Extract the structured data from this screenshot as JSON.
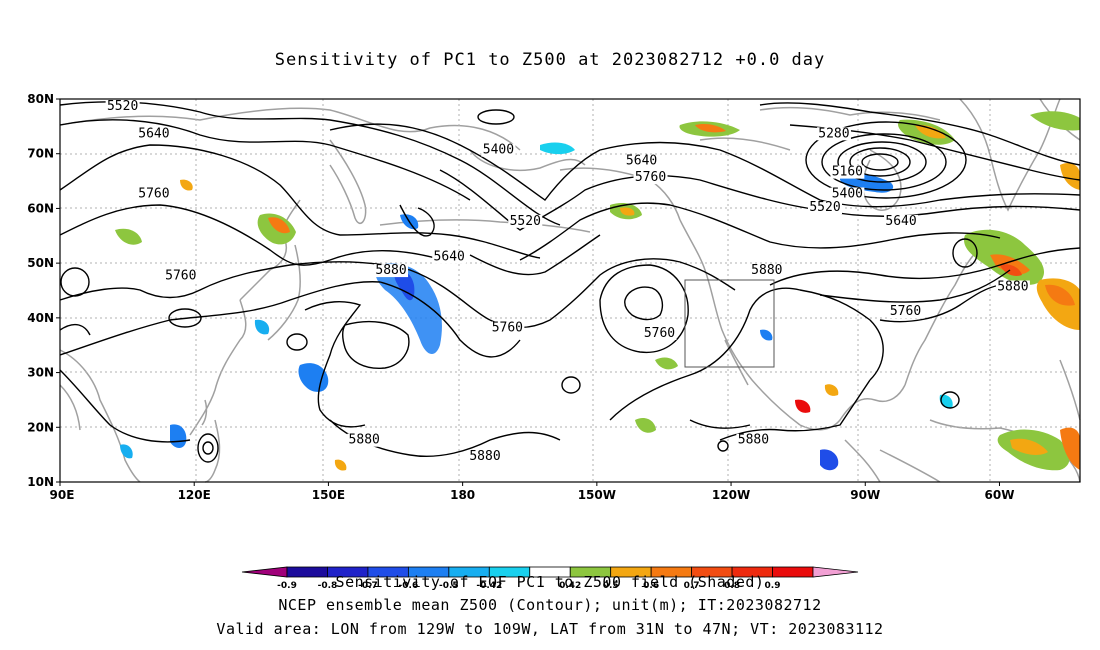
{
  "title": "Sensitivity of PC1 to Z500 at 2023082712 +0.0 day",
  "lat_labels": [
    "80N",
    "70N",
    "60N",
    "50N",
    "40N",
    "30N",
    "20N",
    "10N"
  ],
  "lon_labels": [
    "90E",
    "120E",
    "150E",
    "180",
    "150W",
    "120W",
    "90W",
    "60W"
  ],
  "contour_labels": [
    {
      "text": "5520",
      "lon": 104,
      "lat": 78
    },
    {
      "text": "5640",
      "lon": 111,
      "lat": 73
    },
    {
      "text": "5400",
      "lon": -172,
      "lat": 70
    },
    {
      "text": "5640",
      "lon": -140,
      "lat": 68
    },
    {
      "text": "5760",
      "lon": -138,
      "lat": 65
    },
    {
      "text": "5280",
      "lon": -97,
      "lat": 73
    },
    {
      "text": "5160",
      "lon": -94,
      "lat": 66
    },
    {
      "text": "5400",
      "lon": -94,
      "lat": 62
    },
    {
      "text": "5520",
      "lon": -99,
      "lat": 59.5
    },
    {
      "text": "5640",
      "lon": -82,
      "lat": 57
    },
    {
      "text": "5760",
      "lon": 111,
      "lat": 62
    },
    {
      "text": "5520",
      "lon": -166,
      "lat": 57
    },
    {
      "text": "5640",
      "lon": -183,
      "lat": 50.5
    },
    {
      "text": "5760",
      "lon": 117,
      "lat": 47
    },
    {
      "text": "5880",
      "lon": 164,
      "lat": 48
    },
    {
      "text": "5760",
      "lon": -170,
      "lat": 37.5
    },
    {
      "text": "5760",
      "lon": -136,
      "lat": 36.5
    },
    {
      "text": "5880",
      "lon": -112,
      "lat": 48
    },
    {
      "text": "5760",
      "lon": -81,
      "lat": 40.5
    },
    {
      "text": "5880",
      "lon": -57,
      "lat": 45
    },
    {
      "text": "5880",
      "lon": 158,
      "lat": 17
    },
    {
      "text": "5880",
      "lon": -175,
      "lat": 14
    },
    {
      "text": "5880",
      "lon": -115,
      "lat": 17
    }
  ],
  "colorbar": {
    "labels": [
      "-0.9",
      "-0.8",
      "-0.7",
      "-0.6",
      "-0.5",
      "-0.42",
      "0.42",
      "0.5",
      "0.6",
      "0.7",
      "0.8",
      "0.9"
    ],
    "colors": [
      "#a0007a",
      "#1c0c9c",
      "#1f22c9",
      "#1f4de8",
      "#1d7ff2",
      "#17aef0",
      "#19d0ee",
      "#ffffff",
      "#8dc63f",
      "#f3a712",
      "#f57a12",
      "#f24d12",
      "#ee2a0e",
      "#ea0c0c",
      "#f2a0d4"
    ]
  },
  "overlay_caption": "Sensitivity of EOF PC1 to Z500 field (Shaded)",
  "caption_line1": "NCEP ensemble mean Z500 (Contour); unit(m); IT:2023082712",
  "caption_line2": "Valid area: LON from 129W to 109W, LAT from 31N to 47N; VT: 2023083112"
}
